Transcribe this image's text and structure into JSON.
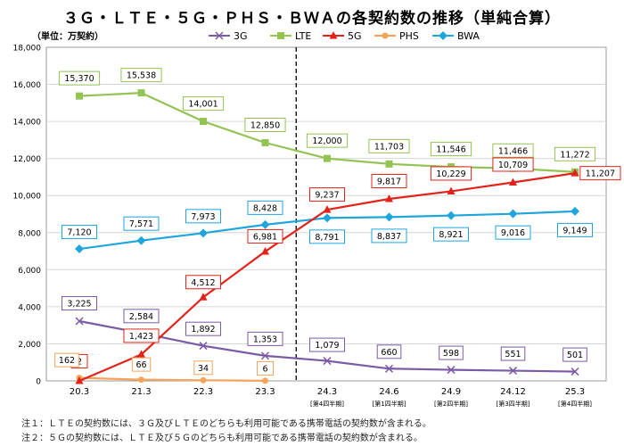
{
  "chart_data": {
    "type": "line",
    "title": "３Ｇ・ＬＴＥ・５Ｇ・ＰＨＳ・ＢＷＡの各契約数の推移（単純合算）",
    "ylabel": "（単位：万契約）",
    "ylim": [
      0,
      18000
    ],
    "yticks": [
      "0",
      "2,000",
      "4,000",
      "6,000",
      "8,000",
      "10,000",
      "12,000",
      "14,000",
      "16,000",
      "18,000"
    ],
    "ytick_values": [
      0,
      2000,
      4000,
      6000,
      8000,
      10000,
      12000,
      14000,
      16000,
      18000
    ],
    "categories": [
      "20.3",
      "21.3",
      "22.3",
      "23.3",
      "24.3",
      "24.6",
      "24.9",
      "24.12",
      "25.3"
    ],
    "subcategories": [
      "",
      "",
      "",
      "",
      "[第4四半期]",
      "[第1四半期]",
      "[第2四半期]",
      "[第3四半期]",
      "[第4四半期]"
    ],
    "divider_after_index": 3,
    "grid": true,
    "legend_position": "top",
    "series": [
      {
        "name": "3G",
        "color": "#7b5aa6",
        "marker": "x",
        "values": [
          3225,
          2584,
          1892,
          1353,
          1079,
          660,
          598,
          551,
          501
        ],
        "labels": [
          "3,225",
          "2,584",
          "1,892",
          "1,353",
          "1,079",
          "660",
          "598",
          "551",
          "501"
        ],
        "label_border": "#7b5aa6"
      },
      {
        "name": "LTE",
        "color": "#92c353",
        "marker": "square",
        "values": [
          15370,
          15538,
          14001,
          12850,
          12000,
          11703,
          11546,
          11466,
          11272
        ],
        "labels": [
          "15,370",
          "15,538",
          "14,001",
          "12,850",
          "12,000",
          "11,703",
          "11,546",
          "11,466",
          "11,272"
        ],
        "label_border": "#92c353"
      },
      {
        "name": "5G",
        "color": "#e2231a",
        "marker": "triangle",
        "values": [
          2,
          1423,
          4512,
          6981,
          9237,
          9817,
          10229,
          10709,
          11207
        ],
        "labels": [
          "2",
          "1,423",
          "4,512",
          "6,981",
          "9,237",
          "9,817",
          "10,229",
          "10,709",
          "11,207"
        ],
        "label_border": "#e2231a"
      },
      {
        "name": "PHS",
        "color": "#f5a35a",
        "marker": "circle",
        "values": [
          162,
          66,
          34,
          6,
          null,
          null,
          null,
          null,
          null
        ],
        "labels": [
          "162",
          "66",
          "34",
          "6",
          "",
          "",
          "",
          "",
          ""
        ],
        "label_border": "#f5a35a"
      },
      {
        "name": "BWA",
        "color": "#1ea5dc",
        "marker": "diamond",
        "values": [
          7120,
          7571,
          7973,
          8428,
          8791,
          8837,
          8921,
          9016,
          9149
        ],
        "labels": [
          "7,120",
          "7,571",
          "7,973",
          "8,428",
          "8,791",
          "8,837",
          "8,921",
          "9,016",
          "9,149"
        ],
        "label_border": "#1ea5dc"
      }
    ]
  },
  "notes": [
    "注１：ＬＴＥの契約数には、３Ｇ及びＬＴＥのどちらも利用可能である携帯電話の契約数が含まれる。",
    "注２：５Ｇの契約数には、ＬＴＥ及び５Ｇのどちらも利用可能である携帯電話の契約数が含まれる。"
  ]
}
